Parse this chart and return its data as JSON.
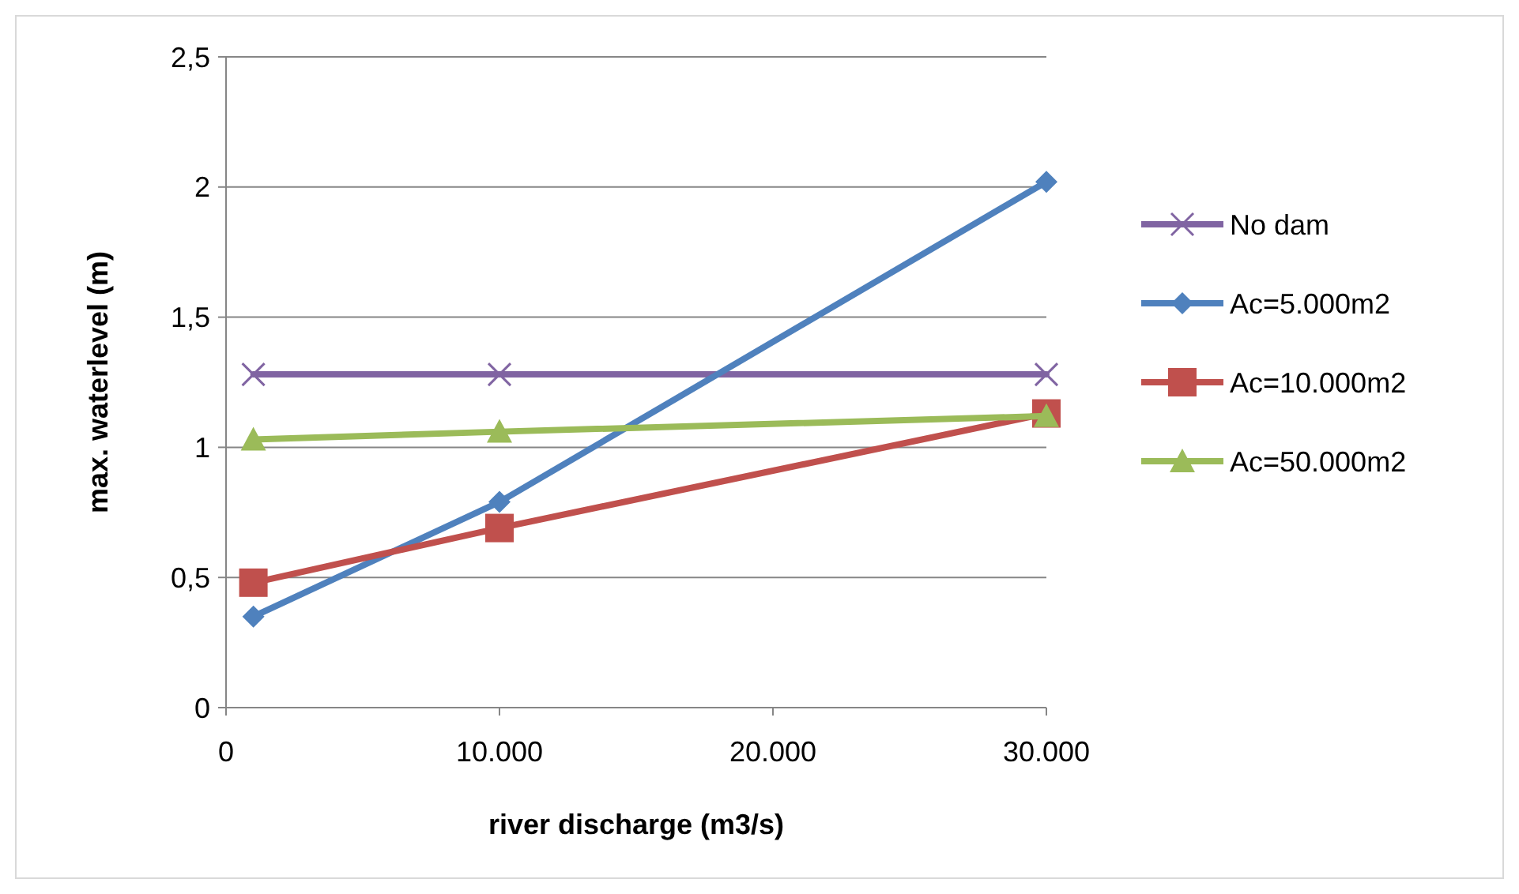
{
  "chart_data": {
    "type": "line",
    "xlabel": "river discharge (m3/s)",
    "ylabel": "max. waterlevel (m)",
    "x": [
      1000,
      10000,
      30000
    ],
    "series": [
      {
        "name": "No dam",
        "color": "#8064a2",
        "marker": "cross",
        "values": [
          1.28,
          1.28,
          1.28
        ]
      },
      {
        "name": "Ac=5.000m2",
        "color": "#4f81bd",
        "marker": "diamond",
        "values": [
          0.35,
          0.79,
          2.02
        ]
      },
      {
        "name": "Ac=10.000m2",
        "color": "#c0504d",
        "marker": "square",
        "values": [
          0.48,
          0.69,
          1.13
        ]
      },
      {
        "name": "Ac=50.000m2",
        "color": "#9bbb59",
        "marker": "triangle",
        "values": [
          1.03,
          1.06,
          1.12
        ]
      }
    ],
    "xlim": [
      0,
      30000
    ],
    "xticks": [
      0,
      {
        "value": 10000,
        "label": "10.000"
      },
      {
        "value": 20000,
        "label": "20.000"
      },
      {
        "value": 30000,
        "label": "30.000"
      }
    ],
    "ylim": [
      0,
      2.5
    ],
    "yticks": [
      0,
      {
        "value": 0.5,
        "label": "0,5"
      },
      1,
      {
        "value": 1.5,
        "label": "1,5"
      },
      2,
      {
        "value": 2.5,
        "label": "2,5"
      }
    ],
    "grid": "y",
    "legend": "right",
    "line_style": "solid"
  }
}
